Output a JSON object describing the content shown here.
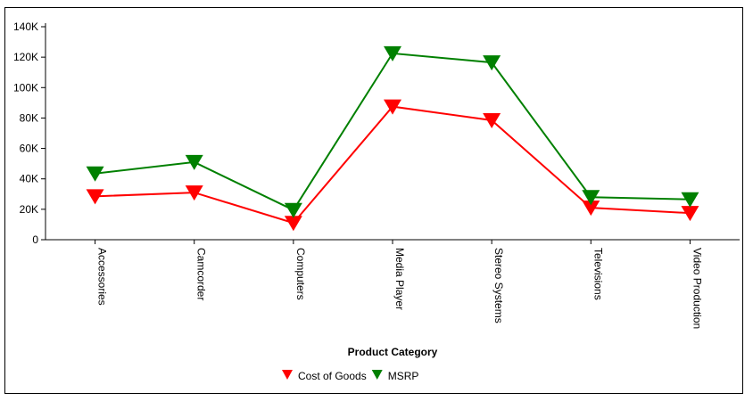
{
  "chart_data": {
    "type": "line",
    "categories": [
      "Accessories",
      "Camcorder",
      "Computers",
      "Media Player",
      "Stereo Systems",
      "Televisions",
      "Video Production"
    ],
    "series": [
      {
        "name": "Cost of Goods",
        "color": "#ff0000",
        "marker": "triangle-down",
        "values": [
          28500,
          31000,
          11000,
          87500,
          78500,
          21000,
          17500
        ]
      },
      {
        "name": "MSRP",
        "color": "#008000",
        "marker": "triangle-down",
        "values": [
          43500,
          51000,
          19500,
          122500,
          116500,
          28000,
          26500
        ]
      }
    ],
    "xlabel": "Product Category",
    "ylabel": "",
    "ylim": [
      0,
      140000
    ],
    "yticks": [
      0,
      20000,
      40000,
      60000,
      80000,
      100000,
      120000,
      140000
    ],
    "ytick_labels": [
      "0",
      "20K",
      "40K",
      "60K",
      "80K",
      "100K",
      "120K",
      "140K"
    ],
    "grid": false,
    "legend_position": "bottom"
  }
}
